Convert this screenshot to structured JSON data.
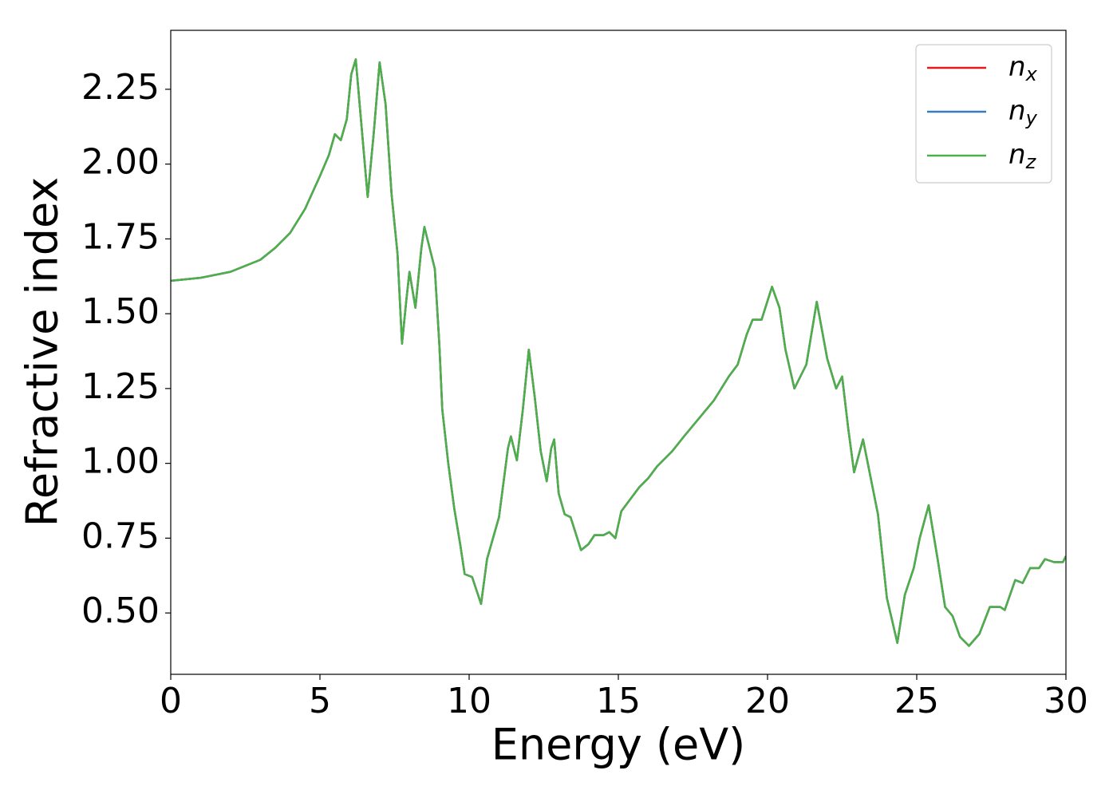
{
  "chart_data": {
    "type": "line",
    "xlabel": "Energy (eV)",
    "ylabel": "Refractive index",
    "x": [
      0,
      1,
      2,
      3,
      3.5,
      4,
      4.5,
      5,
      5.3,
      5.5,
      5.7,
      5.9,
      6.05,
      6.2,
      6.4,
      6.6,
      6.8,
      7.0,
      7.2,
      7.4,
      7.6,
      7.75,
      7.9,
      8.0,
      8.2,
      8.4,
      8.5,
      8.7,
      8.85,
      9.0,
      9.1,
      9.3,
      9.5,
      9.7,
      9.85,
      10.1,
      10.4,
      10.6,
      11.0,
      11.3,
      11.4,
      11.6,
      11.8,
      12.0,
      12.2,
      12.4,
      12.6,
      12.75,
      12.85,
      13.0,
      13.2,
      13.4,
      13.75,
      14.0,
      14.2,
      14.5,
      14.7,
      14.9,
      15.1,
      15.4,
      15.7,
      16.0,
      16.3,
      16.8,
      17.2,
      17.7,
      18.2,
      18.7,
      19.0,
      19.3,
      19.5,
      19.8,
      20.15,
      20.4,
      20.6,
      20.9,
      21.1,
      21.3,
      21.65,
      22.0,
      22.3,
      22.5,
      22.7,
      22.9,
      23.2,
      23.5,
      23.7,
      24.0,
      24.35,
      24.6,
      24.9,
      25.1,
      25.4,
      25.7,
      25.95,
      26.2,
      26.45,
      26.75,
      27.1,
      27.45,
      27.8,
      27.95,
      28.3,
      28.55,
      28.8,
      29.1,
      29.3,
      29.6,
      29.9,
      30
    ],
    "series": [
      {
        "name": "nx",
        "color": "#e41a1c",
        "values": [
          1.61,
          1.62,
          1.64,
          1.68,
          1.72,
          1.77,
          1.85,
          1.96,
          2.03,
          2.1,
          2.08,
          2.15,
          2.3,
          2.35,
          2.12,
          1.89,
          2.1,
          2.34,
          2.2,
          1.9,
          1.7,
          1.4,
          1.55,
          1.64,
          1.52,
          1.72,
          1.79,
          1.71,
          1.65,
          1.4,
          1.18,
          1.0,
          0.85,
          0.73,
          0.63,
          0.62,
          0.53,
          0.68,
          0.82,
          1.05,
          1.09,
          1.01,
          1.18,
          1.38,
          1.22,
          1.04,
          0.94,
          1.05,
          1.08,
          0.9,
          0.83,
          0.82,
          0.71,
          0.73,
          0.76,
          0.76,
          0.77,
          0.75,
          0.84,
          0.88,
          0.92,
          0.95,
          0.99,
          1.04,
          1.09,
          1.15,
          1.21,
          1.29,
          1.33,
          1.43,
          1.48,
          1.48,
          1.59,
          1.52,
          1.38,
          1.25,
          1.29,
          1.33,
          1.54,
          1.35,
          1.25,
          1.29,
          1.12,
          0.97,
          1.08,
          0.93,
          0.83,
          0.55,
          0.4,
          0.56,
          0.65,
          0.75,
          0.86,
          0.68,
          0.52,
          0.49,
          0.42,
          0.39,
          0.43,
          0.52,
          0.52,
          0.51,
          0.61,
          0.6,
          0.65,
          0.65,
          0.68,
          0.67,
          0.67,
          0.69
        ]
      },
      {
        "name": "ny",
        "color": "#377eb8",
        "values": [
          1.61,
          1.62,
          1.64,
          1.68,
          1.72,
          1.77,
          1.85,
          1.96,
          2.03,
          2.1,
          2.08,
          2.15,
          2.3,
          2.35,
          2.12,
          1.89,
          2.1,
          2.34,
          2.2,
          1.9,
          1.7,
          1.4,
          1.55,
          1.64,
          1.52,
          1.72,
          1.79,
          1.71,
          1.65,
          1.4,
          1.18,
          1.0,
          0.85,
          0.73,
          0.63,
          0.62,
          0.53,
          0.68,
          0.82,
          1.05,
          1.09,
          1.01,
          1.18,
          1.38,
          1.22,
          1.04,
          0.94,
          1.05,
          1.08,
          0.9,
          0.83,
          0.82,
          0.71,
          0.73,
          0.76,
          0.76,
          0.77,
          0.75,
          0.84,
          0.88,
          0.92,
          0.95,
          0.99,
          1.04,
          1.09,
          1.15,
          1.21,
          1.29,
          1.33,
          1.43,
          1.48,
          1.48,
          1.59,
          1.52,
          1.38,
          1.25,
          1.29,
          1.33,
          1.54,
          1.35,
          1.25,
          1.29,
          1.12,
          0.97,
          1.08,
          0.93,
          0.83,
          0.55,
          0.4,
          0.56,
          0.65,
          0.75,
          0.86,
          0.68,
          0.52,
          0.49,
          0.42,
          0.39,
          0.43,
          0.52,
          0.52,
          0.51,
          0.61,
          0.6,
          0.65,
          0.65,
          0.68,
          0.67,
          0.67,
          0.69
        ]
      },
      {
        "name": "nz",
        "color": "#4daf4a",
        "values": [
          1.61,
          1.62,
          1.64,
          1.68,
          1.72,
          1.77,
          1.85,
          1.96,
          2.03,
          2.1,
          2.08,
          2.15,
          2.3,
          2.35,
          2.12,
          1.89,
          2.1,
          2.34,
          2.2,
          1.9,
          1.7,
          1.4,
          1.55,
          1.64,
          1.52,
          1.72,
          1.79,
          1.71,
          1.65,
          1.4,
          1.18,
          1.0,
          0.85,
          0.73,
          0.63,
          0.62,
          0.53,
          0.68,
          0.82,
          1.05,
          1.09,
          1.01,
          1.18,
          1.38,
          1.22,
          1.04,
          0.94,
          1.05,
          1.08,
          0.9,
          0.83,
          0.82,
          0.71,
          0.73,
          0.76,
          0.76,
          0.77,
          0.75,
          0.84,
          0.88,
          0.92,
          0.95,
          0.99,
          1.04,
          1.09,
          1.15,
          1.21,
          1.29,
          1.33,
          1.43,
          1.48,
          1.48,
          1.59,
          1.52,
          1.38,
          1.25,
          1.29,
          1.33,
          1.54,
          1.35,
          1.25,
          1.29,
          1.12,
          0.97,
          1.08,
          0.93,
          0.83,
          0.55,
          0.4,
          0.56,
          0.65,
          0.75,
          0.86,
          0.68,
          0.52,
          0.49,
          0.42,
          0.39,
          0.43,
          0.52,
          0.52,
          0.51,
          0.61,
          0.6,
          0.65,
          0.65,
          0.68,
          0.67,
          0.67,
          0.69
        ]
      }
    ],
    "xlim": [
      0,
      30
    ],
    "xticks": [
      0,
      5,
      10,
      15,
      20,
      25,
      30
    ],
    "ylim": [
      0.295,
      2.447
    ],
    "yticks": [
      {
        "value": 0.5,
        "label": "0.50"
      },
      0.75,
      {
        "value": 1.0,
        "label": "1.00"
      },
      1.25,
      {
        "value": 1.5,
        "label": "1.50"
      },
      1.75,
      {
        "value": 2.0,
        "label": "2.00"
      },
      2.25
    ],
    "grid": false,
    "legend": "upper right"
  }
}
